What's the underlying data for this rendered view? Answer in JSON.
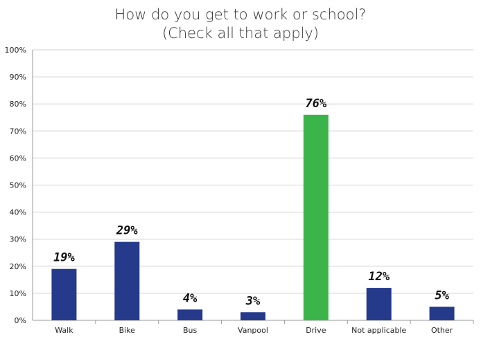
{
  "chart_data": {
    "type": "bar",
    "title": "How do you get to work or school?",
    "subtitle": "(Check all that apply)",
    "categories": [
      "Walk",
      "Bike",
      "Bus",
      "Vanpool",
      "Drive",
      "Not applicable",
      "Other"
    ],
    "values": [
      19,
      29,
      4,
      3,
      76,
      12,
      5
    ],
    "data_labels": [
      "19%",
      "29%",
      "4%",
      "3%",
      "76%",
      "12%",
      "5%"
    ],
    "ylim": [
      0,
      100
    ],
    "yticks": [
      "0%",
      "10%",
      "20%",
      "30%",
      "40%",
      "50%",
      "60%",
      "70%",
      "80%",
      "90%",
      "100%"
    ],
    "grid": true,
    "colors": {
      "default": "#263a8c",
      "highlight": "#3bb54a"
    },
    "highlight_category": "Drive"
  }
}
